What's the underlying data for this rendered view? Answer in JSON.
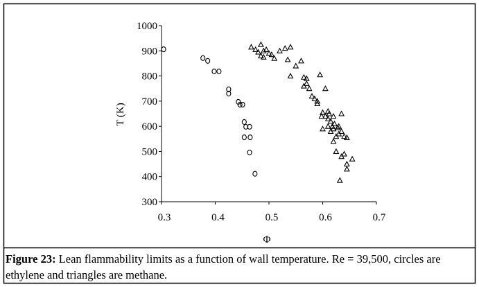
{
  "chart_data": {
    "type": "scatter",
    "xlabel": "Φ",
    "ylabel": "T (K)",
    "xlim": [
      0.3,
      0.7
    ],
    "xticks": [
      {
        "value": 0.3,
        "label": "0.3"
      },
      {
        "value": 0.4,
        "label": "0.4"
      },
      {
        "value": 0.5,
        "label": "0.5"
      },
      {
        "value": 0.6,
        "label": "0.6"
      },
      {
        "value": 0.7,
        "label": "0.7"
      }
    ],
    "ylim": [
      300,
      1000
    ],
    "yticks": [
      300,
      400,
      500,
      600,
      700,
      800,
      900,
      1000
    ],
    "grid": false,
    "series": [
      {
        "color": "#000000",
        "marker": "circle",
        "x": [
          0.304,
          0.377,
          0.386,
          0.398,
          0.407,
          0.425,
          0.425,
          0.443,
          0.446,
          0.451,
          0.454,
          0.457,
          0.464,
          0.454,
          0.465,
          0.464,
          0.474
        ],
        "values": [
          906,
          871,
          860,
          818,
          818,
          747,
          730,
          697,
          686,
          686,
          617,
          598,
          598,
          556,
          556,
          496,
          411
        ]
      },
      {
        "color": "#000000",
        "marker": "triangle",
        "x": [
          0.467,
          0.475,
          0.485,
          0.48,
          0.49,
          0.495,
          0.5,
          0.49,
          0.505,
          0.51,
          0.485,
          0.52,
          0.53,
          0.54,
          0.535,
          0.54,
          0.55,
          0.56,
          0.565,
          0.57,
          0.565,
          0.57,
          0.575,
          0.58,
          0.585,
          0.59,
          0.59,
          0.595,
          0.605,
          0.6,
          0.605,
          0.61,
          0.61,
          0.615,
          0.612,
          0.618,
          0.62,
          0.6,
          0.61,
          0.615,
          0.62,
          0.625,
          0.63,
          0.635,
          0.62,
          0.625,
          0.63,
          0.635,
          0.64,
          0.645,
          0.64,
          0.645,
          0.645,
          0.655,
          0.635,
          0.632,
          0.622,
          0.598,
          0.628
        ],
        "values": [
          915,
          905,
          925,
          895,
          900,
          905,
          890,
          875,
          885,
          870,
          880,
          900,
          910,
          915,
          865,
          800,
          840,
          860,
          795,
          790,
          760,
          770,
          750,
          720,
          710,
          700,
          690,
          805,
          750,
          655,
          640,
          660,
          630,
          620,
          650,
          600,
          640,
          590,
          600,
          580,
          590,
          560,
          600,
          650,
          540,
          500,
          570,
          580,
          560,
          555,
          490,
          430,
          450,
          470,
          480,
          385,
          610,
          640,
          595
        ]
      }
    ]
  },
  "caption": {
    "label": "Figure 23:",
    "text": " Lean flammability limits as a function of wall temperature. Re = 39,500, circles are ethylene and triangles are methane."
  }
}
